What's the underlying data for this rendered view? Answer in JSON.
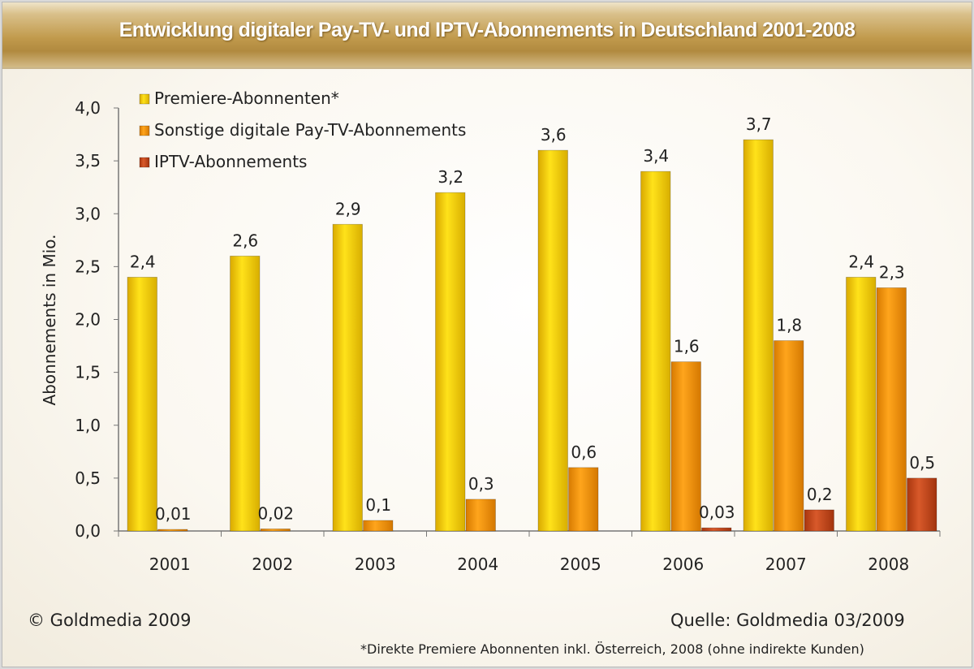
{
  "title": "Entwicklung digitaler Pay-TV- und IPTV-Abonnements in Deutschland 2001-2008",
  "copyright": "© Goldmedia 2009",
  "source": "Quelle: Goldmedia 03/2009",
  "footnote": "*Direkte Premiere Abonnenten inkl. Österreich, 2008 (ohne indirekte Kunden)",
  "chart_data": {
    "type": "bar",
    "title": "Entwicklung digitaler Pay-TV- und IPTV-Abonnements in Deutschland 2001-2008",
    "xlabel": "",
    "ylabel": "Abonnements in Mio.",
    "ylim": [
      0,
      4.0
    ],
    "yticks": [
      "0,0",
      "0,5",
      "1,0",
      "1,5",
      "2,0",
      "2,5",
      "3,0",
      "3,5",
      "4,0"
    ],
    "grid": false,
    "legend": "top-left",
    "categories": [
      "2001",
      "2002",
      "2003",
      "2004",
      "2005",
      "2006",
      "2007",
      "2008"
    ],
    "series": [
      {
        "name": "Premiere-Abonnenten*",
        "color": "#f2c800",
        "values": [
          2.4,
          2.6,
          2.9,
          3.2,
          3.6,
          3.4,
          3.7,
          2.4
        ],
        "labels": [
          "2,4",
          "2,6",
          "2,9",
          "3,2",
          "3,6",
          "3,4",
          "3,7",
          "2,4"
        ]
      },
      {
        "name": "Sonstige digitale Pay-TV-Abonnements",
        "color": "#f29400",
        "values": [
          0.01,
          0.02,
          0.1,
          0.3,
          0.6,
          1.6,
          1.8,
          2.3
        ],
        "labels": [
          "0,01",
          "0,02",
          "0,1",
          "0,3",
          "0,6",
          "1,6",
          "1,8",
          "2,3"
        ]
      },
      {
        "name": "IPTV-Abonnements",
        "color": "#c0461a",
        "values": [
          0,
          0,
          0,
          0,
          0,
          0.03,
          0.2,
          0.5
        ],
        "labels": [
          "",
          "",
          "",
          "",
          "",
          "0,03",
          "0,2",
          "0,5"
        ]
      }
    ]
  }
}
